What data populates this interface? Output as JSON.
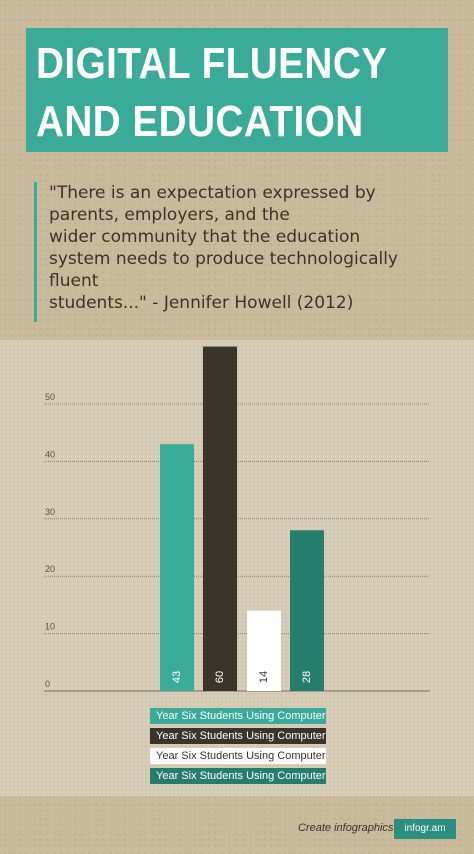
{
  "header": {
    "title_line1": "DIGITAL FLUENCY",
    "title_line2": "AND EDUCATION"
  },
  "quote": {
    "lines": [
      " \"There is an expectation expressed by",
      "parents, employers, and the",
      "wider community that the education",
      "system needs to produce technologically",
      "fluent",
      "students...\" - Jennifer Howell (2012)"
    ]
  },
  "chart_data": {
    "type": "bar",
    "title": "",
    "xlabel": "",
    "ylabel": "",
    "ylim": [
      0,
      50
    ],
    "yticks": [
      "0",
      "10",
      "20",
      "30",
      "40",
      "50"
    ],
    "grid": true,
    "legend_position": "bottom",
    "series": [
      {
        "name": "Year Six Students Using Computer...",
        "value": 43,
        "label": "43",
        "color": "#3aab98"
      },
      {
        "name": "Year Six Students Using Computer...",
        "value": 60,
        "label": "60",
        "color": "#3b342b"
      },
      {
        "name": "Year Six Students Using Computer...",
        "value": 14,
        "label": "14",
        "color": "#ffffff"
      },
      {
        "name": "Year Six Students Using Computer...",
        "value": 28,
        "label": "28",
        "color": "#267d6e"
      }
    ]
  },
  "footer": {
    "text": "Create infographics",
    "badge": "infogr.am"
  }
}
